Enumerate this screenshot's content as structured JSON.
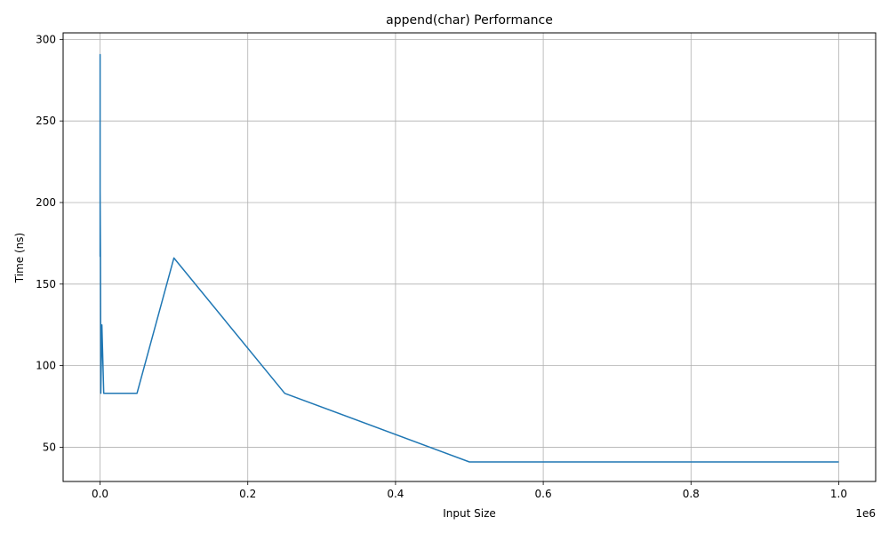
{
  "chart_data": {
    "type": "line",
    "title": "append(char) Performance",
    "xlabel": "Input Size",
    "ylabel": "Time (ns)",
    "x_offset_text": "1e6",
    "xlim": [
      -0.05,
      1.05
    ],
    "ylim": [
      29,
      304
    ],
    "xticks": [
      0.0,
      0.2,
      0.4,
      0.6,
      0.8,
      1.0
    ],
    "xtick_labels": [
      "0.0",
      "0.2",
      "0.4",
      "0.6",
      "0.8",
      "1.0"
    ],
    "yticks": [
      50,
      100,
      150,
      200,
      250,
      300
    ],
    "ytick_labels": [
      "50",
      "100",
      "150",
      "200",
      "250",
      "300"
    ],
    "grid": true,
    "line_color": "#1f77b4",
    "series": [
      {
        "x": [
          1e-05,
          5e-05,
          0.0001,
          0.0005,
          0.001,
          0.0025,
          0.005,
          0.01,
          0.025,
          0.05,
          0.1,
          0.25,
          0.5,
          0.75,
          1.0
        ],
        "y": [
          291,
          167,
          208,
          167,
          83,
          125,
          83,
          83,
          83,
          83,
          166,
          83,
          41,
          41,
          41
        ]
      }
    ]
  }
}
